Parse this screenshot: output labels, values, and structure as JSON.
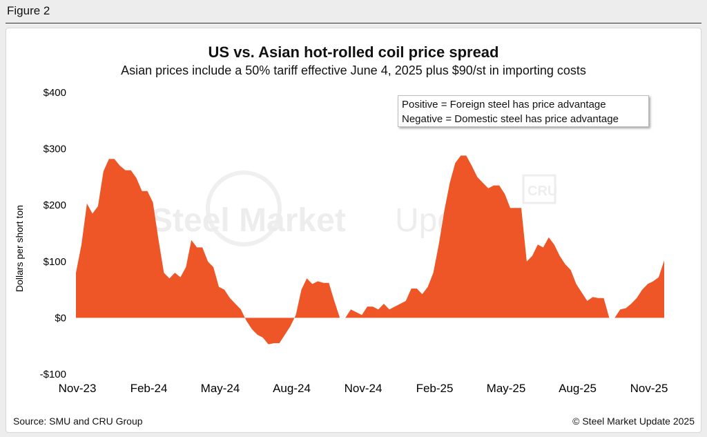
{
  "figure_label": "Figure 2",
  "source": "Source: SMU and CRU Group",
  "copyright": "© Steel Market Update 2025",
  "watermark": {
    "text_bold": "Steel Market",
    "text_light": "Update",
    "badge": "CRU"
  },
  "colors": {
    "area": "#ee5527",
    "text": "#111111",
    "background": "#ededed"
  },
  "chart_data": {
    "type": "area",
    "title": "US vs. Asian hot-rolled coil price spread",
    "subtitle": "Asian prices include a 50% tariff effective June 4, 2025 plus $90/st in importing costs",
    "ylabel": "Dollars per short ton",
    "xlabel": "",
    "ylim": [
      -100,
      400
    ],
    "yticks": [
      400,
      300,
      200,
      100,
      0,
      -100
    ],
    "ytick_labels": [
      "$400",
      "$300",
      "$200",
      "$100",
      "$0",
      "-$100"
    ],
    "xtick_labels": [
      "Nov-23",
      "Feb-24",
      "May-24",
      "Aug-24",
      "Nov-24",
      "Feb-25",
      "May-25",
      "Aug-25",
      "Nov-25"
    ],
    "annotation": [
      "Positive = Foreign steel has price advantage",
      "Negative = Domestic steel has price advantage"
    ],
    "grid": false,
    "series": [
      {
        "values": [
          80,
          130,
          203,
          185,
          198,
          260,
          282,
          282,
          270,
          262,
          262,
          248,
          225,
          225,
          205,
          140,
          80,
          70,
          80,
          72,
          90,
          138,
          125,
          125,
          100,
          90,
          55,
          50,
          35,
          25,
          15,
          -5,
          -20,
          -30,
          -35,
          -47,
          -45,
          -45,
          -30,
          -15,
          5,
          50,
          70,
          60,
          65,
          62,
          62,
          30,
          0,
          0,
          15,
          10,
          5,
          20,
          20,
          15,
          25,
          15,
          20,
          25,
          30,
          52,
          52,
          42,
          55,
          80,
          130,
          190,
          240,
          275,
          288,
          288,
          270,
          250,
          240,
          230,
          235,
          235,
          220,
          195,
          195,
          195,
          100,
          110,
          130,
          125,
          143,
          130,
          110,
          95,
          85,
          60,
          45,
          30,
          37,
          35,
          35,
          0,
          0,
          15,
          17,
          25,
          35,
          50,
          60,
          65,
          72,
          102
        ]
      }
    ]
  }
}
